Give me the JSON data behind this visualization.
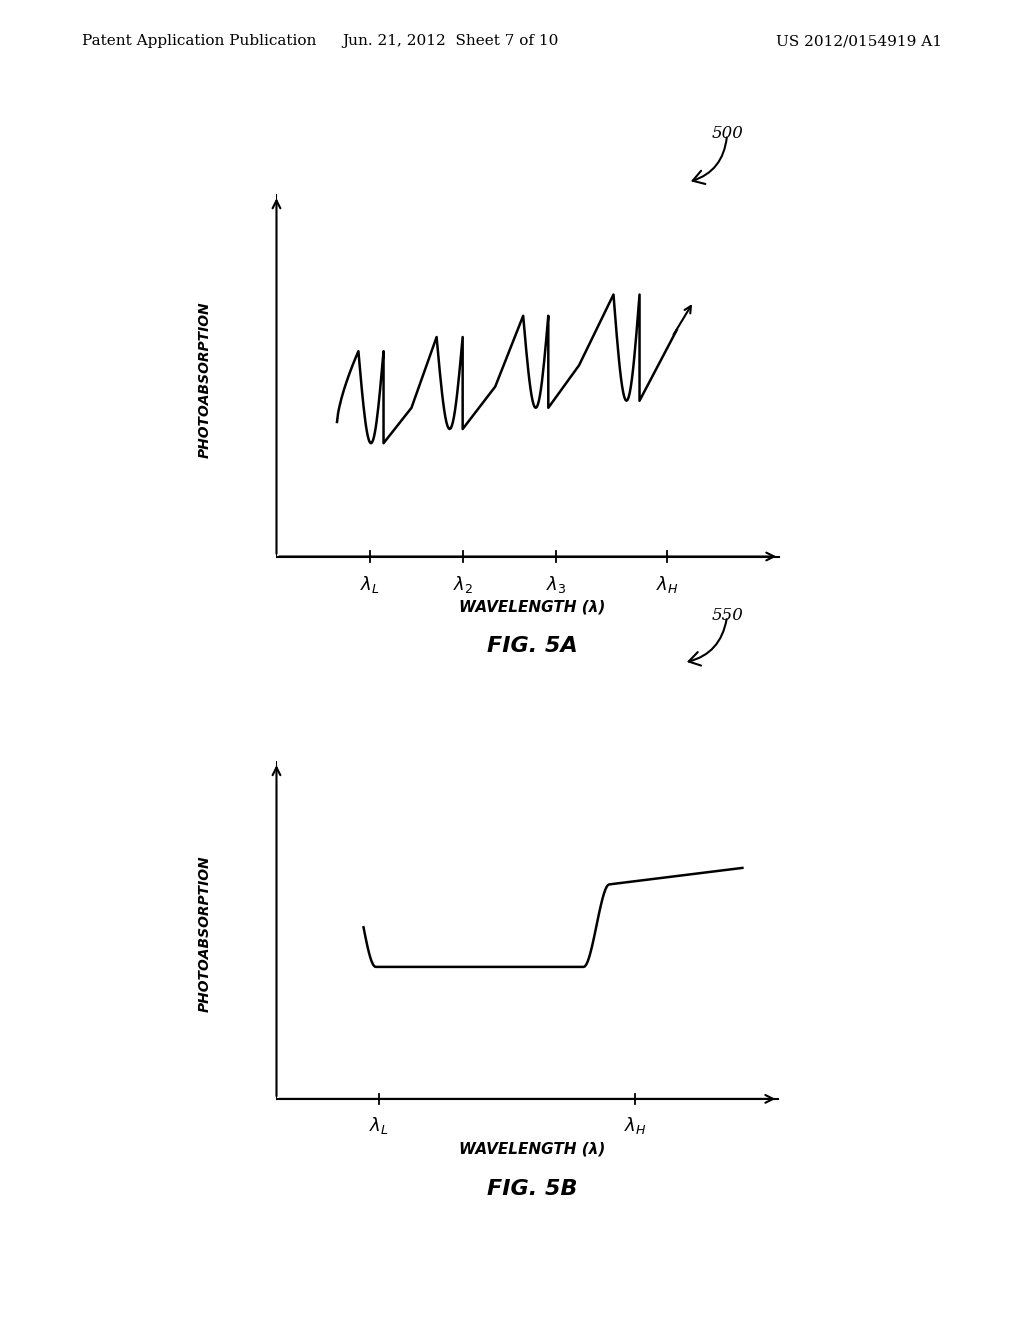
{
  "background_color": "#ffffff",
  "header_left": "Patent Application Publication",
  "header_center": "Jun. 21, 2012  Sheet 7 of 10",
  "header_right": "US 2012/0154919 A1",
  "header_fontsize": 11,
  "fig5a": {
    "label": "500",
    "ylabel": "PHOTOABSORPTION",
    "xlabel": "WAVELENGTH (λ)",
    "caption": "FIG. 5A",
    "xtick_labels": [
      "$\\lambda_L$",
      "$\\lambda_2$",
      "$\\lambda_3$",
      "$\\lambda_H$"
    ],
    "xtick_positions": [
      1.0,
      2.0,
      3.0,
      4.2
    ],
    "xlim_min": 0.0,
    "xlim_max": 5.5,
    "ylim_min": -0.05,
    "ylim_max": 1.05
  },
  "fig5b": {
    "label": "550",
    "ylabel": "PHOTOABSORPTION",
    "xlabel": "WAVELENGTH (λ)",
    "caption": "FIG. 5B",
    "xtick_labels": [
      "$\\lambda_L$",
      "$\\lambda_H$"
    ],
    "xtick_positions": [
      1.0,
      3.5
    ],
    "xlim_min": 0.0,
    "xlim_max": 5.0,
    "ylim_min": -0.05,
    "ylim_max": 1.05
  }
}
